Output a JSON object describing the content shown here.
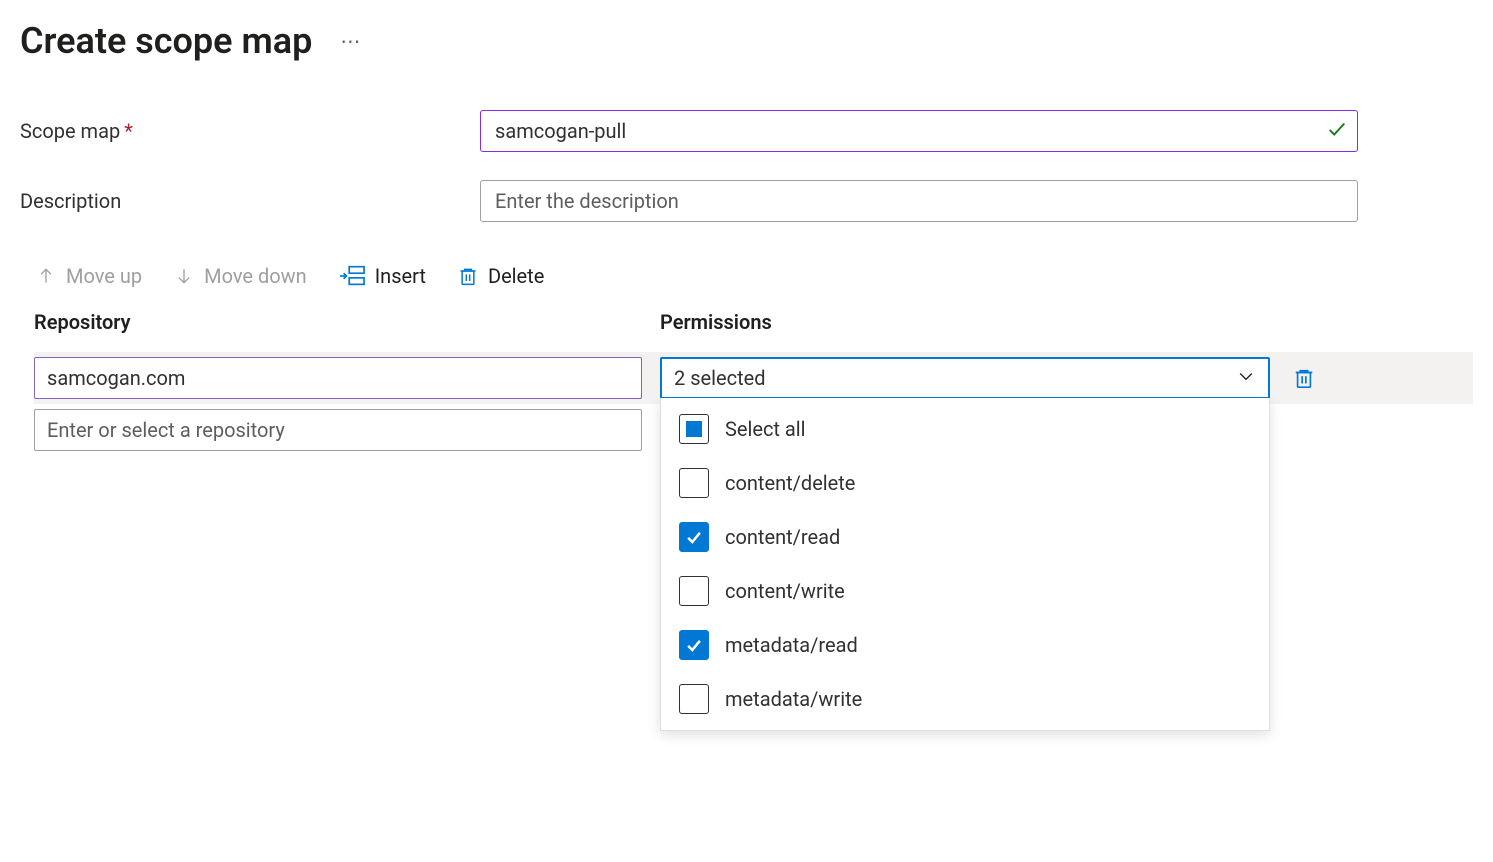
{
  "header": {
    "title": "Create scope map"
  },
  "form": {
    "name_label": "Scope map",
    "name_value": "samcogan-pull",
    "description_label": "Description",
    "description_placeholder": "Enter the description",
    "description_value": ""
  },
  "toolbar": {
    "move_up": "Move up",
    "move_down": "Move down",
    "insert": "Insert",
    "delete": "Delete"
  },
  "table": {
    "repo_header": "Repository",
    "perm_header": "Permissions",
    "rows": [
      {
        "repository": "samcogan.com",
        "permissions_summary": "2 selected"
      }
    ],
    "new_row_placeholder": "Enter or select a repository"
  },
  "permissions_dropdown": {
    "select_all_label": "Select all",
    "select_all_state": "indeterminate",
    "options": [
      {
        "label": "content/delete",
        "checked": false
      },
      {
        "label": "content/read",
        "checked": true
      },
      {
        "label": "content/write",
        "checked": false
      },
      {
        "label": "metadata/read",
        "checked": true
      },
      {
        "label": "metadata/write",
        "checked": false
      }
    ]
  },
  "colors": {
    "accent": "#0078d4",
    "valid_border": "#8a2be2",
    "required": "#a4262c",
    "success": "#107c10"
  }
}
